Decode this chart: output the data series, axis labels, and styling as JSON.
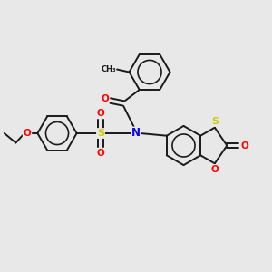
{
  "bg_color": "#e8e8e8",
  "bond_color": "#1a1a1a",
  "atom_colors": {
    "N": "#0000ff",
    "O": "#ff0000",
    "S": "#cccc00",
    "C": "#1a1a1a"
  },
  "figsize": [
    3.0,
    3.0
  ],
  "dpi": 100
}
